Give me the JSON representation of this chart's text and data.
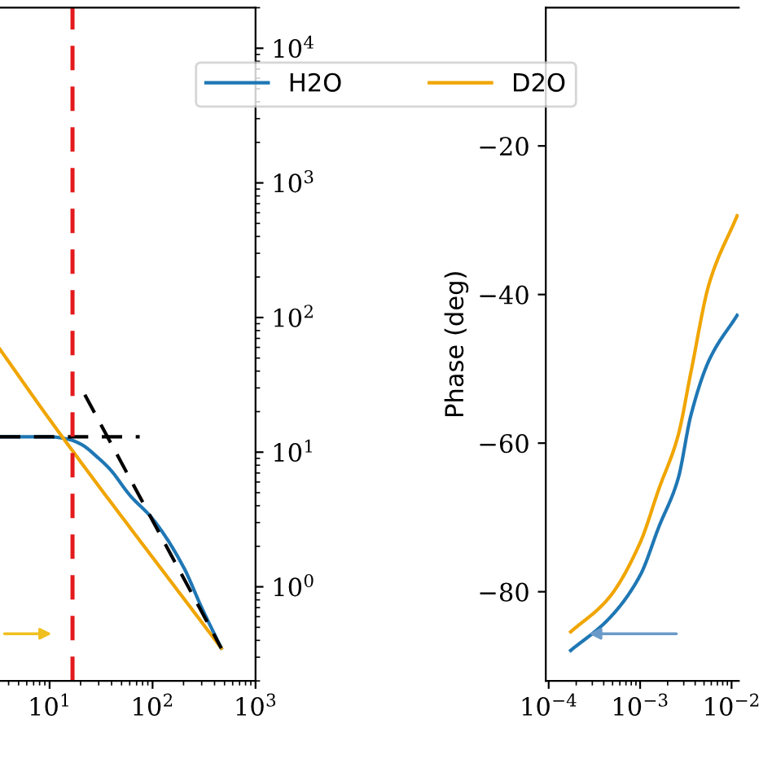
{
  "chart_data": [
    {
      "type": "line",
      "log": "xy",
      "legend": "top",
      "grid": false,
      "xlim": [
        3.3,
        1000
      ],
      "ylim": [
        0.2,
        20000
      ],
      "xticks": [
        {
          "value": 10,
          "label": "10$^{1}$"
        },
        {
          "value": 100,
          "label": "10$^{2}$"
        },
        {
          "value": 1000,
          "label": "10$^{3}$"
        }
      ],
      "yticks": [
        {
          "value": 1,
          "label": "10$^{0}$"
        },
        {
          "value": 10,
          "label": "10$^{1}$"
        },
        {
          "value": 100,
          "label": "10$^{2}$"
        },
        {
          "value": 1000,
          "label": "10$^{3}$"
        },
        {
          "value": 10000,
          "label": "10$^{4}$"
        }
      ],
      "series": [
        {
          "name": "H2O",
          "color": "#1f77b4",
          "x": [
            3.3,
            5,
            10,
            15,
            20,
            30,
            39,
            60,
            100,
            200,
            300,
            465
          ],
          "values": [
            13,
            13,
            13,
            12.5,
            11.5,
            9,
            7.4,
            4.8,
            3.2,
            1.4,
            0.7,
            0.35
          ]
        },
        {
          "name": "D2O",
          "color": "#f0a500",
          "x": [
            3.3,
            10,
            465
          ],
          "values": [
            58,
            17.5,
            0.35
          ]
        },
        {
          "type": "line",
          "color": "#000000",
          "line_style": "dashed",
          "x": [
            3.3,
            75
          ],
          "values": [
            13,
            13
          ]
        },
        {
          "type": "line",
          "color": "#000000",
          "line_style": "dashed",
          "x": [
            22,
            465
          ],
          "values": [
            26.7,
            0.35
          ]
        }
      ],
      "ref_lines": [
        {
          "axis": "x",
          "value": 16.7,
          "color": "#e31a1c",
          "line_style": "dashed"
        }
      ]
    },
    {
      "type": "line",
      "log": "x",
      "legend": "top",
      "grid": false,
      "ylabel": "Phase (deg)",
      "xlim": [
        9.3e-05,
        0.012
      ],
      "ylim": [
        -92,
        -1.4
      ],
      "xticks": [
        {
          "value": 0.0001,
          "label": "10$^{−4}$"
        },
        {
          "value": 0.001,
          "label": "10$^{−3}$"
        },
        {
          "value": 0.01,
          "label": "10$^{−2}$"
        }
      ],
      "yticks": [
        {
          "value": -80,
          "label": "−80"
        },
        {
          "value": -60,
          "label": "−60"
        },
        {
          "value": -40,
          "label": "−40"
        },
        {
          "value": -20,
          "label": "−20"
        }
      ],
      "series": [
        {
          "name": "H2O",
          "color": "#1f77b4",
          "x": [
            0.000174,
            0.00045,
            0.001,
            0.0016,
            0.0026,
            0.0036,
            0.0057,
            0.0115
          ],
          "values": [
            -87.9,
            -83.7,
            -77.8,
            -71.3,
            -64.8,
            -56.2,
            -48.8,
            -42.8
          ]
        },
        {
          "name": "D2O",
          "color": "#f0a500",
          "x": [
            0.000174,
            0.00045,
            0.001,
            0.0016,
            0.0026,
            0.0036,
            0.0057,
            0.0115
          ],
          "values": [
            -85.4,
            -80.9,
            -73.4,
            -66.2,
            -59,
            -50.4,
            -38.5,
            -29.4
          ]
        }
      ]
    }
  ]
}
